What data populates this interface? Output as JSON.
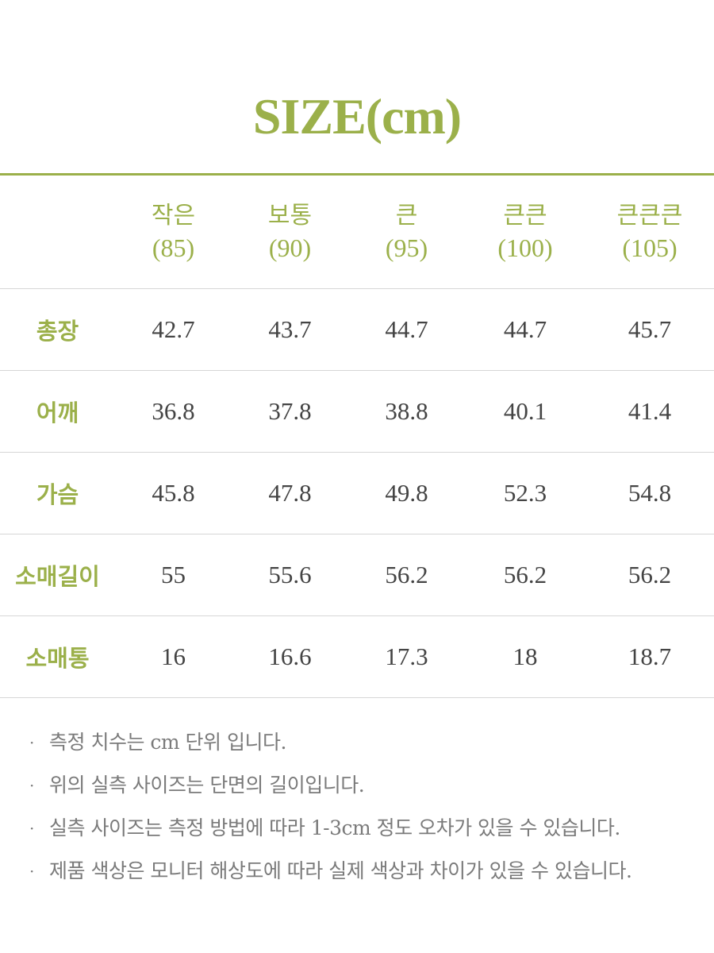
{
  "title": "SIZE(cm)",
  "table": {
    "columns": [
      {
        "name": "작은",
        "size": "(85)"
      },
      {
        "name": "보통",
        "size": "(90)"
      },
      {
        "name": "큰",
        "size": "(95)"
      },
      {
        "name": "큰큰",
        "size": "(100)"
      },
      {
        "name": "큰큰큰",
        "size": "(105)"
      }
    ],
    "rows": [
      {
        "label": "총장",
        "values": [
          "42.7",
          "43.7",
          "44.7",
          "44.7",
          "45.7"
        ]
      },
      {
        "label": "어깨",
        "values": [
          "36.8",
          "37.8",
          "38.8",
          "40.1",
          "41.4"
        ]
      },
      {
        "label": "가슴",
        "values": [
          "45.8",
          "47.8",
          "49.8",
          "52.3",
          "54.8"
        ]
      },
      {
        "label": "소매길이",
        "values": [
          "55",
          "55.6",
          "56.2",
          "56.2",
          "56.2"
        ]
      },
      {
        "label": "소매통",
        "values": [
          "16",
          "16.6",
          "17.3",
          "18",
          "18.7"
        ]
      }
    ]
  },
  "notes": {
    "bullet": "·",
    "items": [
      "측정 치수는 cm 단위 입니다.",
      "위의 실측 사이즈는 단면의 길이입니다.",
      "실측 사이즈는 측정 방법에 따라 1-3cm 정도 오차가 있을 수 있습니다.",
      "제품 색상은 모니터 해상도에 따라 실제 색상과 차이가 있을 수 있습니다."
    ]
  },
  "colors": {
    "accent": "#9bb04a",
    "text": "#444444",
    "note_text": "#7a7a7a",
    "divider": "#d6d6d6"
  }
}
